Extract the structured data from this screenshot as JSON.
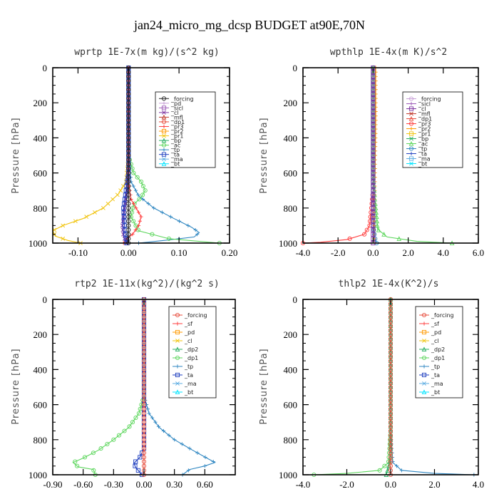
{
  "figure_title": "jan24_micro_mg_dcsp  BUDGET at90E,70N",
  "chart_data": [
    {
      "type": "line",
      "title": "wprtp  1E-7x(m kg)/(s^2 kg)",
      "ylabel": "Pressure [hPa]",
      "xlim": [
        -0.15,
        0.2
      ],
      "ylim": [
        1000,
        0
      ],
      "x_ticks": [
        "-0.10",
        "0.00",
        "0.10",
        "0.20"
      ],
      "x_tick_values": [
        -0.1,
        0.0,
        0.1,
        0.2
      ],
      "y_ticks": [
        "0",
        "200",
        "400",
        "600",
        "800",
        "1000"
      ],
      "y_tick_values": [
        0,
        200,
        400,
        600,
        800,
        1000
      ],
      "legend": [
        {
          "name": "_forcing",
          "color": "#222222"
        },
        {
          "name": "_pd",
          "color": "#c79fd6"
        },
        {
          "name": "_sicl",
          "color": "#9b59b6"
        },
        {
          "name": "_cl",
          "color": "#7a2f9e"
        },
        {
          "name": "_mfl",
          "color": "#c0392b"
        },
        {
          "name": "_dp1",
          "color": "#e74c3c"
        },
        {
          "name": "_pr3",
          "color": "#ff3b3b"
        },
        {
          "name": "_pr2",
          "color": "#ff9900"
        },
        {
          "name": "_pr1",
          "color": "#f1c40f"
        },
        {
          "name": "_bp",
          "color": "#27ae60"
        },
        {
          "name": "_ac",
          "color": "#5cd65c"
        },
        {
          "name": "_tp",
          "color": "#2e86c1"
        },
        {
          "name": "_ta",
          "color": "#1f3fbf"
        },
        {
          "name": "_ma",
          "color": "#5dade2"
        },
        {
          "name": "_bt",
          "color": "#00e5ff"
        }
      ],
      "series": [
        {
          "name": "_pr1",
          "points": [
            [
              0,
              0
            ],
            [
              0,
              500
            ],
            [
              -0.005,
              650
            ],
            [
              -0.02,
              720
            ],
            [
              -0.05,
              800
            ],
            [
              -0.09,
              860
            ],
            [
              -0.13,
              900
            ],
            [
              -0.15,
              930
            ],
            [
              -0.145,
              960
            ],
            [
              -0.12,
              985
            ],
            [
              -0.095,
              1000
            ]
          ]
        },
        {
          "name": "_tp",
          "points": [
            [
              0,
              0
            ],
            [
              0,
              500
            ],
            [
              0.005,
              650
            ],
            [
              0.02,
              730
            ],
            [
              0.05,
              800
            ],
            [
              0.09,
              860
            ],
            [
              0.125,
              910
            ],
            [
              0.14,
              940
            ],
            [
              0.13,
              965
            ],
            [
              0.07,
              985
            ],
            [
              0.02,
              1000
            ]
          ]
        },
        {
          "name": "_ac",
          "points": [
            [
              0,
              0
            ],
            [
              0,
              500
            ],
            [
              0.01,
              600
            ],
            [
              0.025,
              650
            ],
            [
              0.033,
              700
            ],
            [
              0.025,
              740
            ],
            [
              0.01,
              780
            ],
            [
              0.005,
              850
            ],
            [
              0.02,
              930
            ],
            [
              0.08,
              975
            ],
            [
              0.18,
              1000
            ]
          ]
        },
        {
          "name": "_pr3",
          "points": [
            [
              0,
              0
            ],
            [
              0,
              650
            ],
            [
              0.005,
              750
            ],
            [
              0.015,
              800
            ],
            [
              0.025,
              850
            ],
            [
              0.02,
              900
            ],
            [
              0.008,
              950
            ],
            [
              -0.005,
              980
            ],
            [
              -0.01,
              1000
            ]
          ]
        },
        {
          "name": "_cl",
          "points": [
            [
              0,
              0
            ],
            [
              0,
              550
            ],
            [
              -0.003,
              700
            ],
            [
              -0.008,
              800
            ],
            [
              -0.012,
              900
            ],
            [
              -0.01,
              960
            ],
            [
              -0.004,
              1000
            ]
          ]
        },
        {
          "name": "_ta",
          "points": [
            [
              0,
              0
            ],
            [
              0,
              600
            ],
            [
              -0.005,
              700
            ],
            [
              -0.01,
              800
            ],
            [
              -0.008,
              900
            ],
            [
              -0.004,
              1000
            ]
          ]
        },
        {
          "name": "_forcing",
          "points": [
            [
              0,
              0
            ],
            [
              0,
              1000
            ]
          ]
        }
      ]
    },
    {
      "type": "line",
      "title": "wpthlp  1E-4x(m K)/s^2",
      "ylabel": "Pressure [hPa]",
      "xlim": [
        -4.0,
        6.0
      ],
      "ylim": [
        1000,
        0
      ],
      "x_ticks": [
        "-4.0",
        "-2.0",
        "0.0",
        "2.0",
        "4.0",
        "6.0"
      ],
      "x_tick_values": [
        -4.0,
        -2.0,
        0.0,
        2.0,
        4.0,
        6.0
      ],
      "y_ticks": [
        "0",
        "200",
        "400",
        "600",
        "800",
        "1000"
      ],
      "y_tick_values": [
        0,
        200,
        400,
        600,
        800,
        1000
      ],
      "legend": [
        {
          "name": "_forcing",
          "color": "#c79fd6"
        },
        {
          "name": "_sicl",
          "color": "#9b59b6"
        },
        {
          "name": "_cl",
          "color": "#7a2f9e"
        },
        {
          "name": "_mfl",
          "color": "#c0392b"
        },
        {
          "name": "_dp1",
          "color": "#e74c3c"
        },
        {
          "name": "_pr3",
          "color": "#ff3b3b"
        },
        {
          "name": "_pr2",
          "color": "#ff9900"
        },
        {
          "name": "_pr1",
          "color": "#f1c40f"
        },
        {
          "name": "_bp",
          "color": "#27ae60"
        },
        {
          "name": "_ac",
          "color": "#5cd65c"
        },
        {
          "name": "_tp",
          "color": "#2e86c1"
        },
        {
          "name": "_ta",
          "color": "#1f3fbf"
        },
        {
          "name": "_ma",
          "color": "#5dade2"
        },
        {
          "name": "_bt",
          "color": "#00e5ff"
        }
      ],
      "series": [
        {
          "name": "_pr2",
          "points": [
            [
              0.15,
              0
            ],
            [
              0.15,
              300
            ],
            [
              0.1,
              700
            ],
            [
              0.05,
              950
            ],
            [
              0.1,
              1000
            ]
          ]
        },
        {
          "name": "_ac",
          "points": [
            [
              0,
              0
            ],
            [
              0,
              600
            ],
            [
              0.1,
              750
            ],
            [
              0.2,
              850
            ],
            [
              0.25,
              920
            ],
            [
              0.8,
              965
            ],
            [
              2.5,
              990
            ],
            [
              4.5,
              1000
            ]
          ]
        },
        {
          "name": "_pr3",
          "points": [
            [
              0,
              0
            ],
            [
              0,
              700
            ],
            [
              -0.1,
              800
            ],
            [
              -0.2,
              900
            ],
            [
              -0.5,
              950
            ],
            [
              -1.5,
              980
            ],
            [
              -3.0,
              995
            ],
            [
              -4.0,
              1000
            ]
          ]
        },
        {
          "name": "_tp",
          "points": [
            [
              0,
              0
            ],
            [
              0,
              900
            ],
            [
              0.1,
              970
            ],
            [
              0.2,
              1000
            ]
          ]
        },
        {
          "name": "_cl",
          "points": [
            [
              0,
              0
            ],
            [
              0,
              1000
            ]
          ]
        }
      ]
    },
    {
      "type": "line",
      "title": "rtp2  1E-11x(kg^2)/(kg^2 s)",
      "ylabel": "Pressure [hPa]",
      "xlim": [
        -0.9,
        0.9
      ],
      "ylim": [
        1000,
        0
      ],
      "x_ticks": [
        "-0.90",
        "-0.60",
        "-0.30",
        "0.00",
        "0.30",
        "0.60"
      ],
      "x_tick_values": [
        -0.9,
        -0.6,
        -0.3,
        0.0,
        0.3,
        0.6
      ],
      "y_ticks": [
        "0",
        "200",
        "400",
        "600",
        "800",
        "1000"
      ],
      "y_tick_values": [
        0,
        200,
        400,
        600,
        800,
        1000
      ],
      "legend": [
        {
          "name": "_forcing",
          "color": "#e74c3c"
        },
        {
          "name": "_sf",
          "color": "#ff3b3b"
        },
        {
          "name": "_pd",
          "color": "#ff9900"
        },
        {
          "name": "_cl",
          "color": "#f1c40f"
        },
        {
          "name": "_dp2",
          "color": "#27ae60"
        },
        {
          "name": "_dp1",
          "color": "#5cd65c"
        },
        {
          "name": "_tp",
          "color": "#2e86c1"
        },
        {
          "name": "_ta",
          "color": "#1f3fbf"
        },
        {
          "name": "_ma",
          "color": "#5dade2"
        },
        {
          "name": "_bt",
          "color": "#00e5ff"
        }
      ],
      "series": [
        {
          "name": "_dp1",
          "points": [
            [
              0,
              0
            ],
            [
              0,
              550
            ],
            [
              -0.05,
              650
            ],
            [
              -0.15,
              730
            ],
            [
              -0.3,
              800
            ],
            [
              -0.45,
              860
            ],
            [
              -0.6,
              905
            ],
            [
              -0.7,
              930
            ],
            [
              -0.65,
              955
            ],
            [
              -0.5,
              970
            ],
            [
              -0.48,
              1000
            ]
          ]
        },
        {
          "name": "_tp",
          "points": [
            [
              0,
              0
            ],
            [
              0,
              550
            ],
            [
              0.05,
              650
            ],
            [
              0.15,
              730
            ],
            [
              0.3,
              800
            ],
            [
              0.48,
              860
            ],
            [
              0.62,
              905
            ],
            [
              0.7,
              930
            ],
            [
              0.6,
              950
            ],
            [
              0.45,
              970
            ],
            [
              0.38,
              1000
            ]
          ]
        },
        {
          "name": "_ta",
          "points": [
            [
              0,
              0
            ],
            [
              0,
              850
            ],
            [
              -0.04,
              900
            ],
            [
              -0.1,
              935
            ],
            [
              -0.08,
              960
            ],
            [
              -0.02,
              1000
            ]
          ]
        },
        {
          "name": "_forcing",
          "points": [
            [
              0,
              0
            ],
            [
              0,
              1000
            ]
          ]
        }
      ]
    },
    {
      "type": "line",
      "title": "thlp2  1E-4x(K^2)/s",
      "ylabel": "Pressure [hPa]",
      "xlim": [
        -4.0,
        4.0
      ],
      "ylim": [
        1000,
        0
      ],
      "x_ticks": [
        "-4.0",
        "-2.0",
        "0.0",
        "2.0",
        "4.0"
      ],
      "x_tick_values": [
        -4.0,
        -2.0,
        0.0,
        2.0,
        4.0
      ],
      "y_ticks": [
        "0",
        "200",
        "400",
        "600",
        "800",
        "1000"
      ],
      "y_tick_values": [
        0,
        200,
        400,
        600,
        800,
        1000
      ],
      "legend": [
        {
          "name": "_forcing",
          "color": "#e74c3c"
        },
        {
          "name": "_sf",
          "color": "#ff3b3b"
        },
        {
          "name": "_pd",
          "color": "#ff9900"
        },
        {
          "name": "_cl",
          "color": "#f1c40f"
        },
        {
          "name": "_dp2",
          "color": "#27ae60"
        },
        {
          "name": "_dp1",
          "color": "#5cd65c"
        },
        {
          "name": "_tp",
          "color": "#2e86c1"
        },
        {
          "name": "_ta",
          "color": "#1f3fbf"
        },
        {
          "name": "_ma",
          "color": "#5dade2"
        },
        {
          "name": "_bt",
          "color": "#00e5ff"
        }
      ],
      "series": [
        {
          "name": "_dp1",
          "points": [
            [
              0,
              0
            ],
            [
              0,
              750
            ],
            [
              -0.05,
              850
            ],
            [
              -0.1,
              930
            ],
            [
              -0.5,
              975
            ],
            [
              -2.0,
              992
            ],
            [
              -3.5,
              1000
            ]
          ]
        },
        {
          "name": "_tp",
          "points": [
            [
              0,
              0
            ],
            [
              0,
              750
            ],
            [
              0.05,
              850
            ],
            [
              0.1,
              930
            ],
            [
              0.5,
              975
            ],
            [
              2.0,
              992
            ],
            [
              3.8,
              1000
            ]
          ]
        },
        {
          "name": "_dp2",
          "points": [
            [
              0,
              0
            ],
            [
              0,
              900
            ],
            [
              -0.1,
              960
            ],
            [
              -0.2,
              1000
            ]
          ]
        },
        {
          "name": "_forcing",
          "points": [
            [
              0,
              0
            ],
            [
              0,
              1000
            ]
          ]
        }
      ]
    }
  ]
}
